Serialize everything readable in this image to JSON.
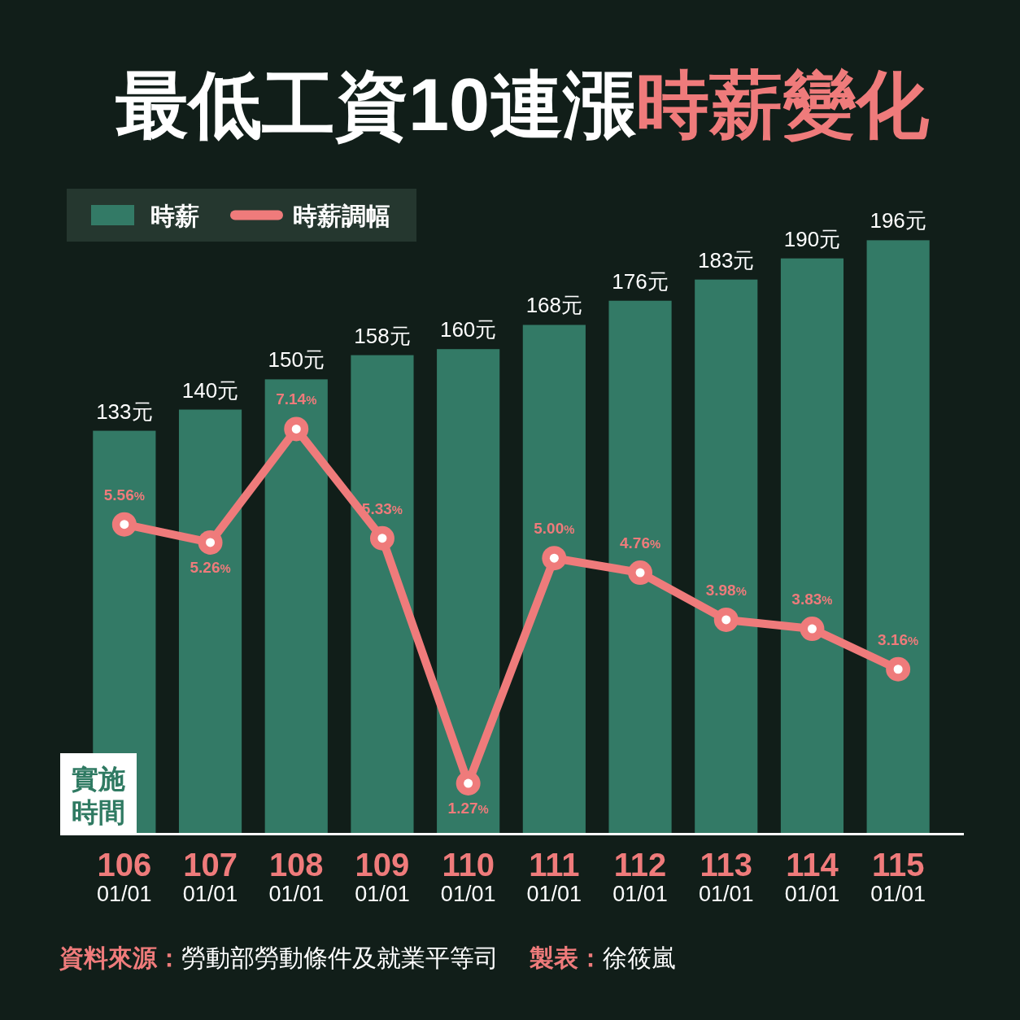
{
  "chart_data": {
    "type": "bar",
    "title": "最低工資10連漲",
    "subtitle": "時薪變化",
    "xlabel": "實施時間",
    "categories": [
      "106\n01/01",
      "107\n01/01",
      "108\n01/01",
      "109\n01/01",
      "110\n01/01",
      "111\n01/01",
      "112\n01/01",
      "113\n01/01",
      "114\n01/01",
      "115\n01/01"
    ],
    "series": [
      {
        "name": "時薪",
        "color": "#337a66",
        "values": [
          133,
          140,
          150,
          158,
          160,
          168,
          176,
          183,
          190,
          196
        ],
        "value_labels": [
          "133元",
          "140元",
          "150元",
          "158元",
          "160元",
          "168元",
          "176元",
          "183元",
          "190元",
          "196元"
        ]
      },
      {
        "name": "時薪調幅",
        "type": "line",
        "axis": "y2",
        "color": "#ef7b7b",
        "marker": "circle",
        "values": [
          5.56,
          5.26,
          7.14,
          5.33,
          1.27,
          5.0,
          4.76,
          3.98,
          3.83,
          3.16
        ],
        "value_labels": [
          "5.56%",
          "5.26%",
          "7.14%",
          "5.33%",
          "1.27%",
          "5.00%",
          "4.76%",
          "3.98%",
          "3.83%",
          "3.16%"
        ]
      }
    ],
    "legend": "top left",
    "annotations": [
      "資料來源：",
      "勞動部勞動條件及就業平等司",
      "製表：",
      "徐筱嵐"
    ]
  }
}
